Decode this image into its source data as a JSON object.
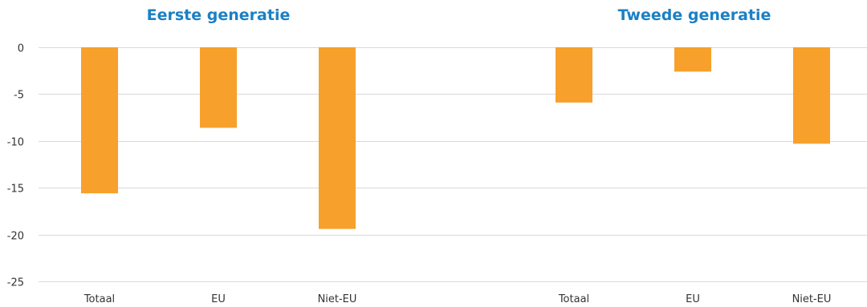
{
  "chart_data": {
    "type": "bar",
    "colors": {
      "bar": "#f7a02b",
      "title": "#1b80c4",
      "grid": "#d9d9d9"
    },
    "ylim": [
      -25,
      0
    ],
    "yticks": [
      0,
      -5,
      -10,
      -15,
      -20,
      -25
    ],
    "grid": true,
    "groups": [
      {
        "title": "Eerste generatie",
        "categories": [
          "Totaal",
          "EU",
          "Niet-EU"
        ],
        "values": [
          -15.6,
          -8.6,
          -19.4
        ]
      },
      {
        "title": "Tweede generatie",
        "categories": [
          "Totaal",
          "EU",
          "Niet-EU"
        ],
        "values": [
          -5.9,
          -2.6,
          -10.3
        ]
      }
    ]
  }
}
